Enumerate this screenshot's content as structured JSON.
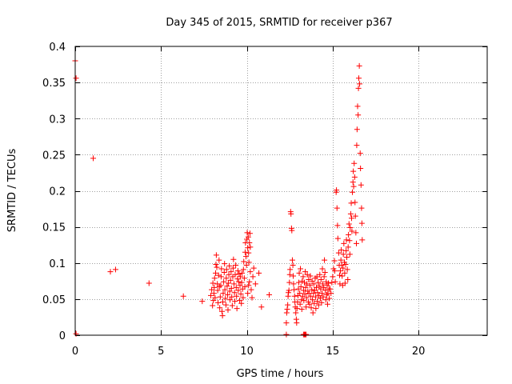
{
  "chart_data": {
    "type": "scatter",
    "title": "Day 345 of 2015, SRMTID for receiver p367",
    "xlabel": "GPS time / hours",
    "ylabel": "SRMTID / TECUs",
    "xlim": [
      0,
      24
    ],
    "ylim": [
      0,
      0.4
    ],
    "xticks": [
      0,
      5,
      10,
      15,
      20
    ],
    "xtick_labels": [
      "0",
      "5",
      "10",
      "15",
      "20"
    ],
    "yticks": [
      0,
      0.05,
      0.1,
      0.15,
      0.2,
      0.25,
      0.3,
      0.35,
      0.4
    ],
    "ytick_labels": [
      "0",
      "0.05",
      "0.1",
      "0.15",
      "0.2",
      "0.25",
      "0.3",
      "0.35",
      "0.4"
    ],
    "grid": true,
    "marker": "+",
    "color": "#ff0000",
    "series": [
      {
        "name": "p367",
        "points": [
          [
            0.0,
            0.38
          ],
          [
            0.05,
            0.356
          ],
          [
            0.05,
            0.002
          ],
          [
            1.05,
            0.245
          ],
          [
            2.05,
            0.088
          ],
          [
            2.35,
            0.091
          ],
          [
            4.3,
            0.072
          ],
          [
            6.3,
            0.054
          ],
          [
            7.4,
            0.047
          ],
          [
            7.9,
            0.055
          ],
          [
            7.95,
            0.063
          ],
          [
            8.0,
            0.041
          ],
          [
            8.02,
            0.072
          ],
          [
            8.05,
            0.048
          ],
          [
            8.08,
            0.058
          ],
          [
            8.1,
            0.066
          ],
          [
            8.12,
            0.079
          ],
          [
            8.15,
            0.052
          ],
          [
            8.18,
            0.086
          ],
          [
            8.2,
            0.098
          ],
          [
            8.22,
            0.111
          ],
          [
            8.25,
            0.094
          ],
          [
            8.28,
            0.071
          ],
          [
            8.3,
            0.062
          ],
          [
            8.32,
            0.045
          ],
          [
            8.35,
            0.083
          ],
          [
            8.38,
            0.104
          ],
          [
            8.4,
            0.067
          ],
          [
            8.42,
            0.038
          ],
          [
            8.45,
            0.053
          ],
          [
            8.48,
            0.069
          ],
          [
            8.5,
            0.081
          ],
          [
            8.52,
            0.092
          ],
          [
            8.55,
            0.033
          ],
          [
            8.58,
            0.027
          ],
          [
            8.6,
            0.046
          ],
          [
            8.62,
            0.058
          ],
          [
            8.65,
            0.074
          ],
          [
            8.68,
            0.087
          ],
          [
            8.7,
            0.099
          ],
          [
            8.72,
            0.063
          ],
          [
            8.75,
            0.051
          ],
          [
            8.78,
            0.042
          ],
          [
            8.8,
            0.079
          ],
          [
            8.82,
            0.091
          ],
          [
            8.85,
            0.068
          ],
          [
            8.88,
            0.056
          ],
          [
            8.9,
            0.035
          ],
          [
            8.92,
            0.072
          ],
          [
            8.95,
            0.084
          ],
          [
            8.98,
            0.096
          ],
          [
            9.0,
            0.061
          ],
          [
            9.02,
            0.049
          ],
          [
            9.05,
            0.076
          ],
          [
            9.08,
            0.088
          ],
          [
            9.1,
            0.065
          ],
          [
            9.12,
            0.053
          ],
          [
            9.15,
            0.041
          ],
          [
            9.18,
            0.081
          ],
          [
            9.2,
            0.093
          ],
          [
            9.22,
            0.105
          ],
          [
            9.25,
            0.071
          ],
          [
            9.28,
            0.059
          ],
          [
            9.3,
            0.047
          ],
          [
            9.32,
            0.084
          ],
          [
            9.35,
            0.097
          ],
          [
            9.38,
            0.066
          ],
          [
            9.4,
            0.054
          ],
          [
            9.42,
            0.037
          ],
          [
            9.45,
            0.078
          ],
          [
            9.48,
            0.089
          ],
          [
            9.5,
            0.062
          ],
          [
            9.52,
            0.074
          ],
          [
            9.55,
            0.085
          ],
          [
            9.58,
            0.048
          ],
          [
            9.6,
            0.069
          ],
          [
            9.62,
            0.081
          ],
          [
            9.65,
            0.057
          ],
          [
            9.68,
            0.044
          ],
          [
            9.7,
            0.073
          ],
          [
            9.72,
            0.086
          ],
          [
            9.75,
            0.064
          ],
          [
            9.78,
            0.052
          ],
          [
            9.8,
            0.091
          ],
          [
            9.82,
            0.102
          ],
          [
            9.85,
            0.079
          ],
          [
            9.88,
            0.067
          ],
          [
            9.9,
            0.115
          ],
          [
            9.92,
            0.128
          ],
          [
            9.95,
            0.109
          ],
          [
            9.98,
            0.097
          ],
          [
            10.0,
            0.133
          ],
          [
            10.02,
            0.142
          ],
          [
            10.05,
            0.121
          ],
          [
            10.08,
            0.136
          ],
          [
            10.1,
            0.114
          ],
          [
            10.12,
            0.101
          ],
          [
            10.15,
            0.128
          ],
          [
            10.18,
            0.141
          ],
          [
            10.2,
            0.122
          ],
          [
            10.05,
            0.058
          ],
          [
            10.1,
            0.069
          ],
          [
            10.15,
            0.074
          ],
          [
            10.2,
            0.088
          ],
          [
            10.25,
            0.063
          ],
          [
            10.3,
            0.052
          ],
          [
            10.35,
            0.081
          ],
          [
            10.4,
            0.093
          ],
          [
            10.5,
            0.071
          ],
          [
            10.7,
            0.086
          ],
          [
            10.85,
            0.039
          ],
          [
            11.3,
            0.056
          ],
          [
            12.3,
            0.001
          ],
          [
            12.3,
            0.017
          ],
          [
            12.32,
            0.031
          ],
          [
            12.35,
            0.036
          ],
          [
            12.38,
            0.042
          ],
          [
            12.4,
            0.054
          ],
          [
            12.42,
            0.059
          ],
          [
            12.45,
            0.062
          ],
          [
            12.48,
            0.073
          ],
          [
            12.5,
            0.084
          ],
          [
            12.52,
            0.091
          ],
          [
            12.55,
            0.171
          ],
          [
            12.57,
            0.168
          ],
          [
            12.6,
            0.148
          ],
          [
            12.62,
            0.145
          ],
          [
            12.65,
            0.104
          ],
          [
            12.68,
            0.097
          ],
          [
            12.7,
            0.082
          ],
          [
            12.72,
            0.071
          ],
          [
            12.75,
            0.063
          ],
          [
            12.78,
            0.054
          ],
          [
            12.8,
            0.046
          ],
          [
            12.82,
            0.039
          ],
          [
            12.85,
            0.031
          ],
          [
            12.88,
            0.022
          ],
          [
            12.9,
            0.017
          ],
          [
            12.92,
            0.037
          ],
          [
            12.95,
            0.046
          ],
          [
            12.98,
            0.055
          ],
          [
            13.0,
            0.064
          ],
          [
            13.02,
            0.073
          ],
          [
            13.05,
            0.086
          ],
          [
            13.08,
            0.058
          ],
          [
            13.1,
            0.043
          ],
          [
            13.12,
            0.092
          ],
          [
            13.15,
            0.067
          ],
          [
            13.18,
            0.049
          ],
          [
            13.2,
            0.036
          ],
          [
            13.22,
            0.075
          ],
          [
            13.25,
            0.054
          ],
          [
            13.28,
            0.081
          ],
          [
            13.3,
            0.001
          ],
          [
            13.35,
            0.001
          ],
          [
            13.4,
            0.001
          ],
          [
            13.45,
            0.001
          ],
          [
            13.3,
            0.062
          ],
          [
            13.32,
            0.048
          ],
          [
            13.35,
            0.073
          ],
          [
            13.38,
            0.057
          ],
          [
            13.4,
            0.088
          ],
          [
            13.42,
            0.066
          ],
          [
            13.45,
            0.039
          ],
          [
            13.48,
            0.052
          ],
          [
            13.5,
            0.071
          ],
          [
            13.52,
            0.084
          ],
          [
            13.55,
            0.061
          ],
          [
            13.58,
            0.046
          ],
          [
            13.6,
            0.077
          ],
          [
            13.62,
            0.058
          ],
          [
            13.65,
            0.043
          ],
          [
            13.68,
            0.069
          ],
          [
            13.7,
            0.082
          ],
          [
            13.72,
            0.054
          ],
          [
            13.75,
            0.038
          ],
          [
            13.78,
            0.063
          ],
          [
            13.8,
            0.075
          ],
          [
            13.82,
            0.049
          ],
          [
            13.85,
            0.031
          ],
          [
            13.88,
            0.058
          ],
          [
            13.9,
            0.071
          ],
          [
            13.92,
            0.044
          ],
          [
            13.95,
            0.062
          ],
          [
            13.98,
            0.079
          ],
          [
            14.0,
            0.053
          ],
          [
            14.02,
            0.037
          ],
          [
            14.05,
            0.066
          ],
          [
            14.08,
            0.081
          ],
          [
            14.1,
            0.047
          ],
          [
            14.12,
            0.059
          ],
          [
            14.15,
            0.073
          ],
          [
            14.18,
            0.042
          ],
          [
            14.2,
            0.055
          ],
          [
            14.22,
            0.068
          ],
          [
            14.25,
            0.084
          ],
          [
            14.28,
            0.051
          ],
          [
            14.3,
            0.064
          ],
          [
            14.32,
            0.077
          ],
          [
            14.35,
            0.045
          ],
          [
            14.38,
            0.058
          ],
          [
            14.4,
            0.092
          ],
          [
            14.42,
            0.071
          ],
          [
            14.45,
            0.053
          ],
          [
            14.48,
            0.066
          ],
          [
            14.5,
            0.081
          ],
          [
            14.52,
            0.104
          ],
          [
            14.55,
            0.087
          ],
          [
            14.58,
            0.062
          ],
          [
            14.6,
            0.049
          ],
          [
            14.62,
            0.074
          ],
          [
            14.65,
            0.056
          ],
          [
            14.68,
            0.069
          ],
          [
            14.7,
            0.043
          ],
          [
            14.72,
            0.058
          ],
          [
            14.75,
            0.072
          ],
          [
            14.78,
            0.064
          ],
          [
            14.8,
            0.051
          ],
          [
            14.85,
            0.064
          ],
          [
            14.9,
            0.058
          ],
          [
            14.95,
            0.073
          ],
          [
            15.0,
            0.081
          ],
          [
            15.05,
            0.092
          ],
          [
            15.1,
            0.103
          ],
          [
            15.12,
            0.089
          ],
          [
            15.15,
            0.074
          ],
          [
            15.2,
            0.198
          ],
          [
            15.22,
            0.201
          ],
          [
            15.25,
            0.176
          ],
          [
            15.28,
            0.152
          ],
          [
            15.3,
            0.134
          ],
          [
            15.35,
            0.114
          ],
          [
            15.38,
            0.097
          ],
          [
            15.4,
            0.083
          ],
          [
            15.42,
            0.071
          ],
          [
            15.45,
            0.089
          ],
          [
            15.48,
            0.104
          ],
          [
            15.5,
            0.118
          ],
          [
            15.52,
            0.097
          ],
          [
            15.55,
            0.082
          ],
          [
            15.58,
            0.069
          ],
          [
            15.6,
            0.093
          ],
          [
            15.62,
            0.112
          ],
          [
            15.65,
            0.127
          ],
          [
            15.68,
            0.101
          ],
          [
            15.7,
            0.086
          ],
          [
            15.72,
            0.072
          ],
          [
            15.75,
            0.098
          ],
          [
            15.78,
            0.117
          ],
          [
            15.8,
            0.132
          ],
          [
            15.82,
            0.108
          ],
          [
            15.85,
            0.091
          ],
          [
            15.88,
            0.077
          ],
          [
            15.9,
            0.122
          ],
          [
            15.92,
            0.139
          ],
          [
            15.95,
            0.154
          ],
          [
            15.98,
            0.131
          ],
          [
            16.0,
            0.112
          ],
          [
            16.02,
            0.149
          ],
          [
            16.05,
            0.168
          ],
          [
            16.08,
            0.183
          ],
          [
            16.1,
            0.162
          ],
          [
            16.12,
            0.144
          ],
          [
            16.15,
            0.198
          ],
          [
            16.18,
            0.212
          ],
          [
            16.2,
            0.227
          ],
          [
            16.22,
            0.206
          ],
          [
            16.25,
            0.238
          ],
          [
            16.28,
            0.219
          ],
          [
            16.3,
            0.184
          ],
          [
            16.32,
            0.165
          ],
          [
            16.35,
            0.142
          ],
          [
            16.38,
            0.127
          ],
          [
            16.4,
            0.263
          ],
          [
            16.42,
            0.285
          ],
          [
            16.45,
            0.317
          ],
          [
            16.48,
            0.305
          ],
          [
            16.5,
            0.342
          ],
          [
            16.52,
            0.356
          ],
          [
            16.55,
            0.373
          ],
          [
            16.57,
            0.348
          ],
          [
            16.6,
            0.252
          ],
          [
            16.62,
            0.231
          ],
          [
            16.65,
            0.208
          ],
          [
            16.68,
            0.176
          ],
          [
            16.7,
            0.155
          ],
          [
            16.72,
            0.132
          ]
        ]
      }
    ]
  }
}
